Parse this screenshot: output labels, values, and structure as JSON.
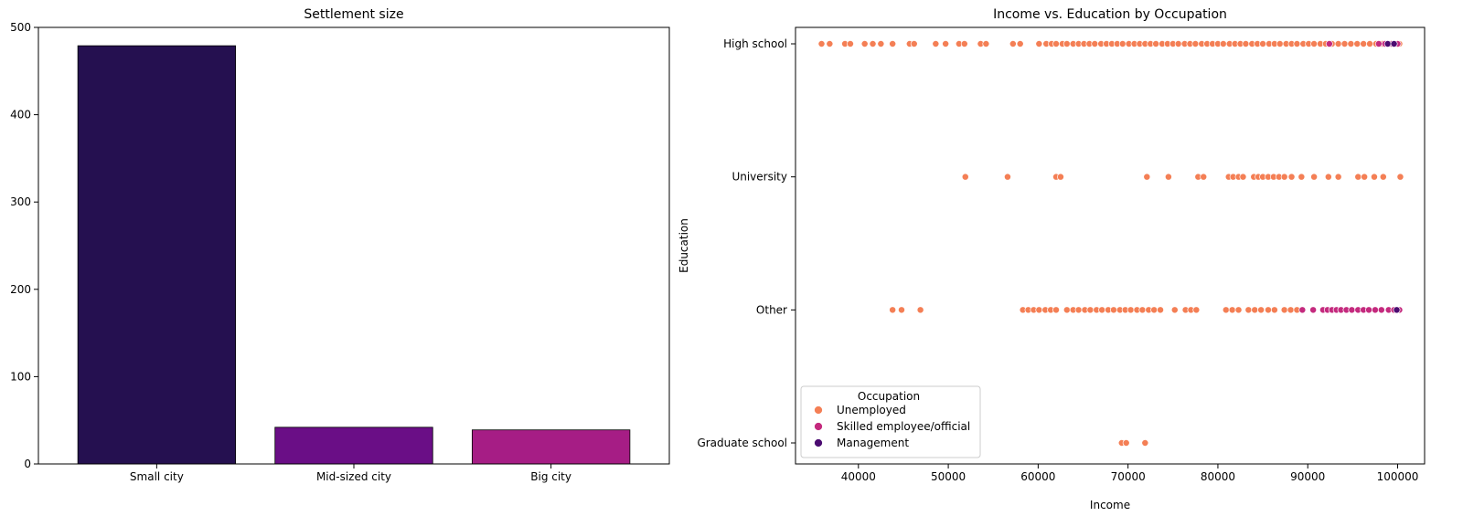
{
  "chart_data": [
    {
      "type": "bar",
      "title": "Settlement size",
      "xlabel": "",
      "ylabel": "",
      "categories": [
        "Small city",
        "Mid-sized city",
        "Big city"
      ],
      "values": [
        479,
        42,
        39
      ],
      "colors": [
        "#251050",
        "#6a0e86",
        "#a61d85"
      ],
      "ylim": [
        0,
        500
      ],
      "yticks": [
        0,
        100,
        200,
        300,
        400,
        500
      ],
      "grid": false
    },
    {
      "type": "scatter",
      "title": "Income vs. Education by Occupation",
      "xlabel": "Income",
      "ylabel": "Education",
      "y_categories": [
        "High school",
        "University",
        "Other",
        "Graduate school"
      ],
      "xlim": [
        33000,
        103000
      ],
      "xticks": [
        40000,
        50000,
        60000,
        70000,
        80000,
        90000,
        100000
      ],
      "grid": false,
      "legend": {
        "title": "Occupation",
        "placement": "lower-left",
        "entries": [
          {
            "name": "Unemployed",
            "color": "#f47f55"
          },
          {
            "name": "Skilled employee/official",
            "color": "#c42a7e"
          },
          {
            "name": "Management",
            "color": "#4b0b71"
          }
        ]
      },
      "series": [
        {
          "name": "Unemployed",
          "color": "#f47f55",
          "points": [
            {
              "category": "High school",
              "x": [
                35900,
                36800,
                38500,
                39100,
                40700,
                41600,
                42500,
                43800,
                45700,
                46200,
                48600,
                49700,
                51200,
                51800,
                53600,
                54200,
                57200,
                58000,
                60100,
                60900,
                61500,
                62000,
                62700,
                63200,
                63900,
                64500,
                65100,
                65700,
                66300,
                67000,
                67600,
                68200,
                68800,
                69400,
                70100,
                70700,
                71300,
                71900,
                72500,
                73100,
                73800,
                74400,
                75000,
                75600,
                76300,
                76900,
                77500,
                78200,
                78800,
                79400,
                80000,
                80600,
                81300,
                81900,
                82500,
                83100,
                83800,
                84400,
                85000,
                85700,
                86300,
                86900,
                87600,
                88200,
                88800,
                89500,
                90100,
                90700,
                91400,
                92000,
                92700,
                93400,
                94100,
                94800,
                95500,
                96200,
                96900,
                97600,
                98300,
                99700,
                100200
              ]
            },
            {
              "category": "University",
              "x": [
                51900,
                56600,
                62000,
                62500,
                72100,
                74500,
                77800,
                78400,
                81200,
                81700,
                82300,
                82800,
                84000,
                84500,
                85000,
                85600,
                86200,
                86800,
                87400,
                88200,
                89300,
                90700,
                92300,
                93400,
                95600,
                96300,
                97400,
                98400,
                100300
              ]
            },
            {
              "category": "Other",
              "x": [
                43800,
                44800,
                46900,
                58300,
                58900,
                59500,
                60100,
                60800,
                61400,
                62000,
                63200,
                63900,
                64500,
                65200,
                65800,
                66500,
                67100,
                67800,
                68400,
                69100,
                69700,
                70300,
                71000,
                71600,
                72300,
                72900,
                73600,
                75200,
                76400,
                77000,
                77600,
                80900,
                81600,
                82300,
                83400,
                84100,
                84800,
                85600,
                86300,
                87400,
                88100,
                88800
              ]
            },
            {
              "category": "Graduate school",
              "x": [
                69300,
                69800,
                71900
              ]
            }
          ]
        },
        {
          "name": "Skilled employee/official",
          "color": "#c42a7e",
          "points": [
            {
              "category": "High school",
              "x": [
                92400,
                97900,
                98600,
                99300,
                100000
              ]
            },
            {
              "category": "Other",
              "x": [
                89400,
                90600,
                91700,
                92200,
                92700,
                93200,
                93700,
                94300,
                94900,
                95600,
                96200,
                96800,
                97500,
                98200,
                99000,
                99600,
                100200
              ]
            }
          ]
        },
        {
          "name": "Management",
          "color": "#4b0b71",
          "points": [
            {
              "category": "High school",
              "x": [
                98900,
                99600
              ]
            },
            {
              "category": "Other",
              "x": [
                99900
              ]
            }
          ]
        }
      ]
    }
  ]
}
